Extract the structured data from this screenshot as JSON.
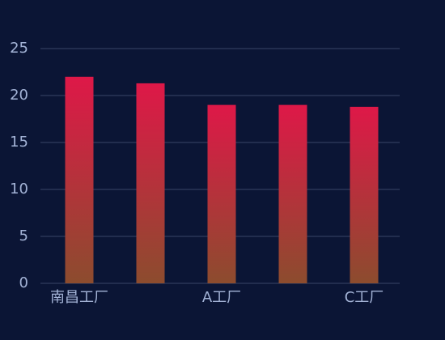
{
  "chart_data": {
    "type": "bar",
    "categories": [
      "南昌工厂",
      null,
      "A工厂",
      null,
      "C工厂"
    ],
    "values": [
      22,
      21.3,
      19,
      19,
      18.8
    ],
    "gradient": [
      "#de1848",
      "#8c4c2e"
    ],
    "ylim": [
      0,
      25
    ],
    "yticks": [
      0,
      5,
      10,
      15,
      20,
      25
    ],
    "grid": true
  }
}
